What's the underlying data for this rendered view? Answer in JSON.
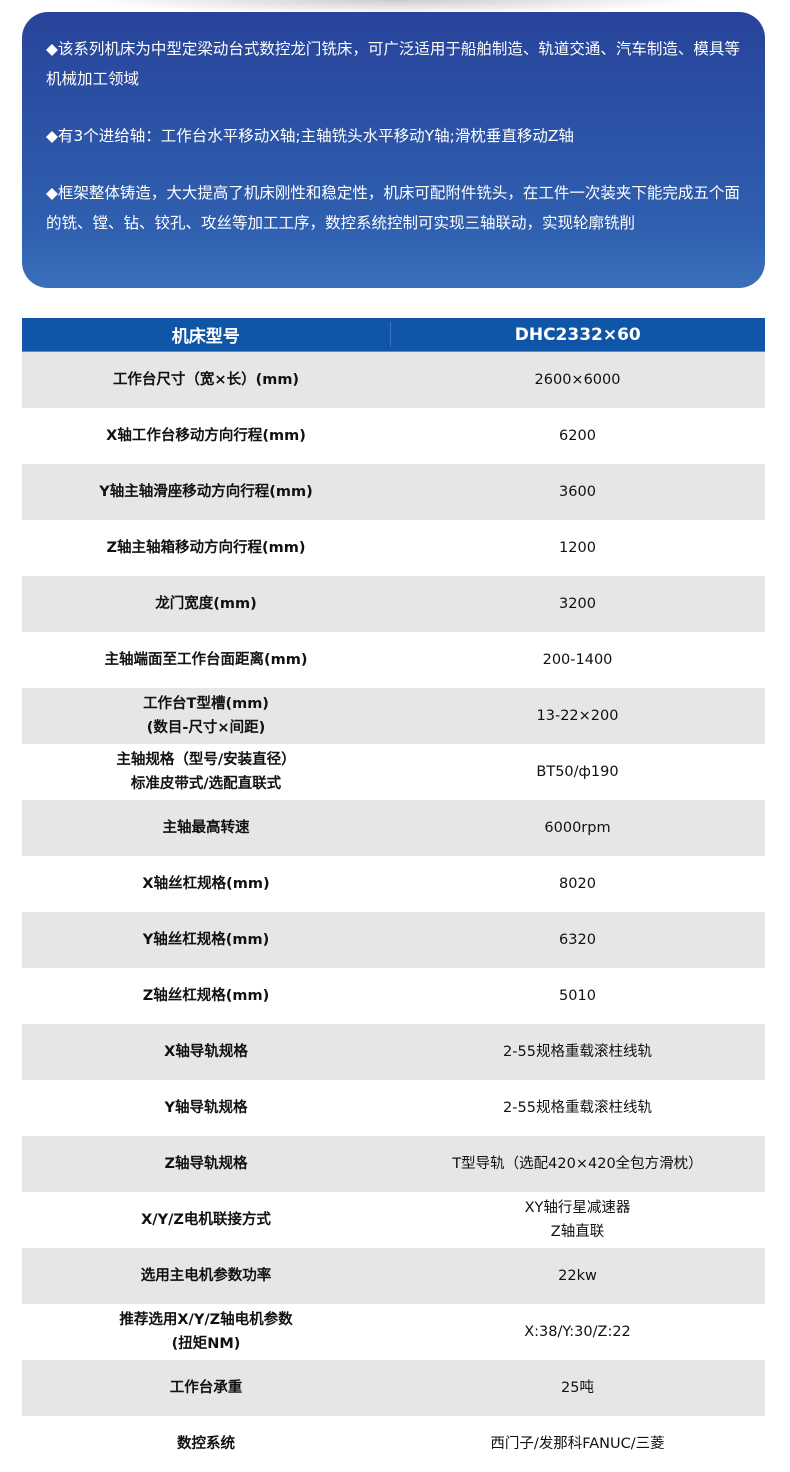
{
  "intro": [
    "◆该系列机床为中型定梁动台式数控龙门铣床，可广泛适用于船舶制造、轨道交通、汽车制造、模具等机械加工领域",
    "◆有3个进给轴：工作台水平移动X轴;主轴铣头水平移动Y轴;滑枕垂直移动Z轴",
    "◆框架整体铸造，大大提高了机床刚性和稳定性，机床可配附件铣头，在工件一次装夹下能完成五个面的铣、镗、钻、铰孔、攻丝等加工工序，数控系统控制可实现三轴联动，实现轮廓铣削"
  ],
  "table": {
    "header": [
      "机床型号",
      "DHC2332×60"
    ],
    "rows": [
      [
        "工作台尺寸（宽×长）(mm)",
        "2600×6000"
      ],
      [
        "X轴工作台移动方向行程(mm)",
        "6200"
      ],
      [
        "Y轴主轴滑座移动方向行程(mm)",
        "3600"
      ],
      [
        "Z轴主轴箱移动方向行程(mm)",
        "1200"
      ],
      [
        "龙门宽度(mm)",
        "3200"
      ],
      [
        "主轴端面至工作台面距离(mm)",
        "200-1400"
      ],
      [
        "工作台T型槽(mm)\n(数目-尺寸×间距)",
        "13-22×200"
      ],
      [
        "主轴规格（型号/安装直径）\n标准皮带式/选配直联式",
        "BT50/ф190"
      ],
      [
        "主轴最高转速",
        "6000rpm"
      ],
      [
        "X轴丝杠规格(mm)",
        "8020"
      ],
      [
        "Y轴丝杠规格(mm)",
        "6320"
      ],
      [
        "Z轴丝杠规格(mm)",
        "5010"
      ],
      [
        "X轴导轨规格",
        "2-55规格重载滚柱线轨"
      ],
      [
        "Y轴导轨规格",
        "2-55规格重载滚柱线轨"
      ],
      [
        "Z轴导轨规格",
        "T型导轨（选配420×420全包方滑枕）"
      ],
      [
        "X/Y/Z电机联接方式",
        "XY轴行星减速器\nZ轴直联"
      ],
      [
        "选用主电机参数功率",
        "22kw"
      ],
      [
        "推荐选用X/Y/Z轴电机参数\n(扭矩NM)",
        "X:38/Y:30/Z:22"
      ],
      [
        "工作台承重",
        "25吨"
      ],
      [
        "数控系统",
        "西门子/发那科FANUC/三菱"
      ]
    ]
  },
  "colors": {
    "intro_bg": "#2f5caf",
    "header_bg": "#0f56a8",
    "row_alt": "#e6e6e6"
  }
}
